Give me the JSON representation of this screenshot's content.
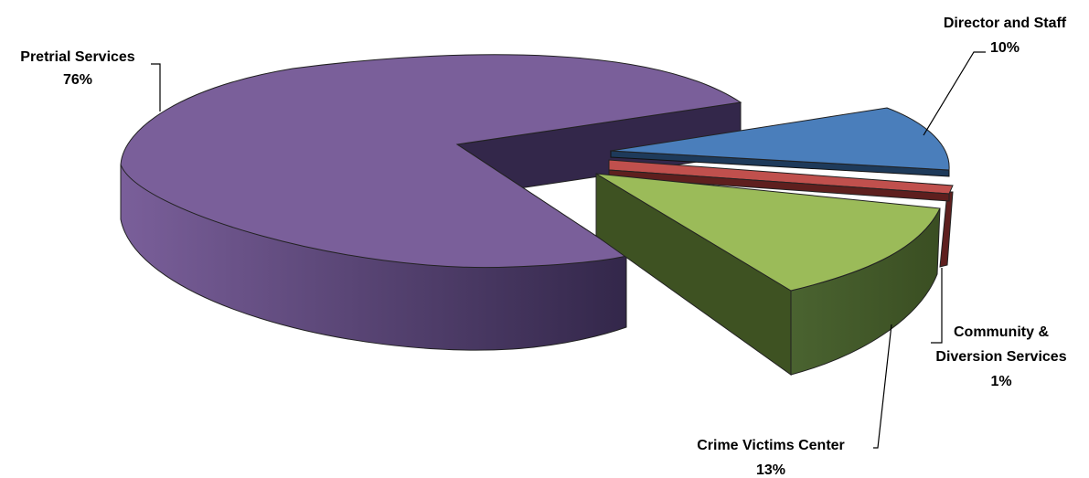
{
  "chart_data": {
    "type": "pie",
    "title": "",
    "legend": "none",
    "slices": [
      {
        "label": "Pretrial Services",
        "value": 76,
        "value_label": "76%",
        "color": "#7A5F9A",
        "side_color": "#5A3F75"
      },
      {
        "label": "Director and Staff",
        "value": 10,
        "value_label": "10%",
        "color": "#4A7EBB",
        "side_color": "#1E3A5A"
      },
      {
        "label": "Community & Diversion Services",
        "label_lines": [
          "Community &",
          "Diversion Services"
        ],
        "value": 1,
        "value_label": "1%",
        "color": "#C0504D",
        "side_color": "#5E1F1E"
      },
      {
        "label": "Crime Victims Center",
        "value": 13,
        "value_label": "13%",
        "color": "#9BBB59",
        "side_color": "#3E5222"
      }
    ]
  }
}
